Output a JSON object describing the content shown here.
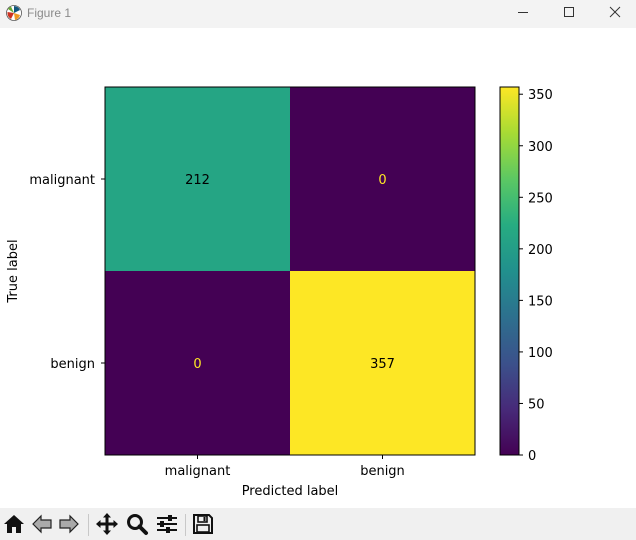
{
  "window": {
    "title": "Figure 1",
    "app_icon": "matplotlib-icon",
    "controls": [
      "minimize-icon",
      "maximize-icon",
      "close-icon"
    ]
  },
  "toolbar": {
    "tools": [
      "home-icon",
      "back-arrow-icon",
      "forward-arrow-icon",
      "pan-move-icon",
      "zoom-magnifier-icon",
      "configure-subplots-icon",
      "save-floppy-icon"
    ]
  },
  "chart_data": {
    "type": "heatmap",
    "title": "",
    "xlabel": "Predicted label",
    "ylabel": "True label",
    "x_categories": [
      "malignant",
      "benign"
    ],
    "y_categories": [
      "malignant",
      "benign"
    ],
    "values": [
      [
        212,
        0
      ],
      [
        0,
        357
      ]
    ],
    "colormap": "viridis",
    "colorbar": {
      "min": 0,
      "max": 357,
      "ticks": [
        0,
        50,
        100,
        150,
        200,
        250,
        300,
        350
      ]
    },
    "text_colors": {
      "dark_cells": "#fde725",
      "light_cells": "#000000"
    },
    "grid": false
  }
}
